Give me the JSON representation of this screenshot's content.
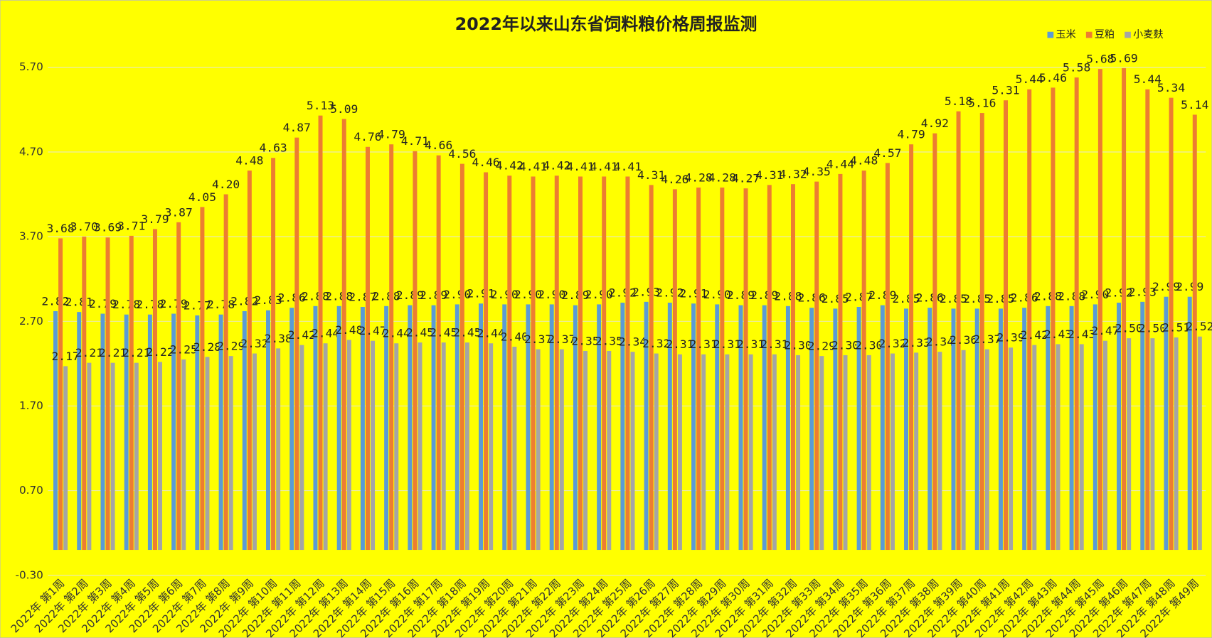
{
  "chart_data": {
    "type": "bar",
    "title": "2022年以来山东省饲料粮价格周报监测",
    "categories": [
      "2022年 第1周",
      "2022年 第2周",
      "2022年 第3周",
      "2022年 第4周",
      "2022年 第5周",
      "2022年 第6周",
      "2022年 第7周",
      "2022年 第8周",
      "2022年 第9周",
      "2022年 第10周",
      "2022年 第11周",
      "2022年 第12周",
      "2022年 第13周",
      "2022年 第14周",
      "2022年 第15周",
      "2022年 第16周",
      "2022年 第17周",
      "2022年 第18周",
      "2022年 第19周",
      "2022年 第20周",
      "2022年 第21周",
      "2022年 第22周",
      "2022年 第23周",
      "2022年 第24周",
      "2022年 第25周",
      "2022年 第26周",
      "2022年 第27周",
      "2022年 第28周",
      "2022年 第29周",
      "2022年 第30周",
      "2022年 第31周",
      "2022年 第32周",
      "2022年 第33周",
      "2022年 第34周",
      "2022年 第35周",
      "2022年 第36周",
      "2022年 第37周",
      "2022年 第38周",
      "2022年 第39周",
      "2022年 第40周",
      "2022年 第41周",
      "2022年 第42周",
      "2022年 第43周",
      "2022年 第44周",
      "2022年 第45周",
      "2022年 第46周",
      "2022年 第47周",
      "2022年 第48周",
      "2022年 第49周"
    ],
    "series": [
      {
        "name": "玉米",
        "color": "#5b9bd5",
        "values": [
          2.82,
          2.81,
          2.79,
          2.78,
          2.78,
          2.79,
          2.77,
          2.78,
          2.82,
          2.83,
          2.86,
          2.88,
          2.88,
          2.87,
          2.88,
          2.89,
          2.89,
          2.9,
          2.91,
          2.9,
          2.9,
          2.9,
          2.89,
          2.9,
          2.92,
          2.93,
          2.92,
          2.91,
          2.9,
          2.89,
          2.89,
          2.88,
          2.86,
          2.85,
          2.87,
          2.89,
          2.85,
          2.86,
          2.85,
          2.85,
          2.85,
          2.86,
          2.88,
          2.88,
          2.9,
          2.92,
          2.93,
          2.99,
          2.99
        ],
        "value_labels": [
          "2.82",
          "2.81",
          "2.79",
          "2.78",
          "2.78",
          "2.79",
          "2.77",
          "2.78",
          "2.82",
          "2.83",
          "2.86",
          "2.88",
          "2.88",
          "2.87",
          "2.88",
          "2.89",
          "2.89",
          "2.90",
          "2.91",
          "2.90",
          "2.90",
          "2.90",
          "2.89",
          "2.90",
          "2.92",
          "2.93",
          "2.92",
          "2.91",
          "2.90",
          "2.89",
          "2.89",
          "2.88",
          "2.86",
          "2.85",
          "2.87",
          "2.89",
          "2.85",
          "2.86",
          "2.85",
          "2.85",
          "2.85",
          "2.86",
          "2.88",
          "2.88",
          "2.90",
          "2.92",
          "2.93",
          "2.99",
          "2.99"
        ]
      },
      {
        "name": "豆粕",
        "color": "#ed7d31",
        "values": [
          3.68,
          3.7,
          3.69,
          3.71,
          3.79,
          3.87,
          4.05,
          4.2,
          4.48,
          4.63,
          4.87,
          5.13,
          5.09,
          4.76,
          4.79,
          4.71,
          4.66,
          4.56,
          4.46,
          4.42,
          4.41,
          4.42,
          4.41,
          4.41,
          4.41,
          4.31,
          4.26,
          4.28,
          4.28,
          4.27,
          4.31,
          4.32,
          4.35,
          4.44,
          4.48,
          4.57,
          4.79,
          4.92,
          5.18,
          5.16,
          5.31,
          5.44,
          5.46,
          5.58,
          5.68,
          5.69,
          5.44,
          5.34,
          5.14
        ],
        "value_labels": [
          "3.68",
          "3.70",
          "3.69",
          "3.71",
          "3.79",
          "3.87",
          "4.05",
          "4.20",
          "4.48",
          "4.63",
          "4.87",
          "5.13",
          "5.09",
          "4.76",
          "4.79",
          "4.71",
          "4.66",
          "4.56",
          "4.46",
          "4.42",
          "4.41",
          "4.42",
          "4.41",
          "4.41",
          "4.41",
          "4.31",
          "4.26",
          "4.28",
          "4.28",
          "4.27",
          "4.31",
          "4.32",
          "4.35",
          "4.44",
          "4.48",
          "4.57",
          "4.79",
          "4.92",
          "5.18",
          "5.16",
          "5.31",
          "5.44",
          "5.46",
          "5.58",
          "5.68",
          "5.69",
          "5.44",
          "5.34",
          "5.14"
        ]
      },
      {
        "name": "小麦麸",
        "color": "#a5a5a5",
        "values": [
          2.17,
          2.21,
          2.21,
          2.21,
          2.22,
          2.25,
          2.28,
          2.29,
          2.32,
          2.38,
          2.42,
          2.44,
          2.48,
          2.47,
          2.44,
          2.45,
          2.45,
          2.45,
          2.44,
          2.4,
          2.37,
          2.37,
          2.35,
          2.35,
          2.34,
          2.32,
          2.31,
          2.31,
          2.31,
          2.31,
          2.31,
          2.3,
          2.29,
          2.3,
          2.3,
          2.32,
          2.33,
          2.34,
          2.36,
          2.37,
          2.39,
          2.42,
          2.43,
          2.43,
          2.47,
          2.5,
          2.5,
          2.51,
          2.52
        ],
        "value_labels": [
          "2.17",
          "2.21",
          "2.21",
          "2.21",
          "2.22",
          "2.25",
          "2.28",
          "2.29",
          "2.32",
          "2.38",
          "2.42",
          "2.44",
          "2.48",
          "2.47",
          "2.44",
          "2.45",
          "2.45",
          "2.45",
          "2.44",
          "2.40",
          "2.37",
          "2.37",
          "2.35",
          "2.35",
          "2.34",
          "2.32",
          "2.31",
          "2.31",
          "2.31",
          "2.31",
          "2.31",
          "2.30",
          "2.29",
          "2.30",
          "2.30",
          "2.32",
          "2.33",
          "2.34",
          "2.36",
          "2.37",
          "2.39",
          "2.42",
          "2.43",
          "2.43",
          "2.47",
          "2.50",
          "2.50",
          "2.51",
          "2.52"
        ]
      }
    ],
    "ylim": [
      -0.3,
      5.7
    ],
    "yticks": [
      {
        "value": -0.3,
        "label": "-0.30"
      },
      {
        "value": 0.7,
        "label": "0.70"
      },
      {
        "value": 1.7,
        "label": "1.70"
      },
      {
        "value": 2.7,
        "label": "2.70"
      },
      {
        "value": 3.7,
        "label": "3.70"
      },
      {
        "value": 4.7,
        "label": "4.70"
      },
      {
        "value": 5.7,
        "label": "5.70"
      }
    ],
    "grid": true,
    "legend": "top-right"
  }
}
